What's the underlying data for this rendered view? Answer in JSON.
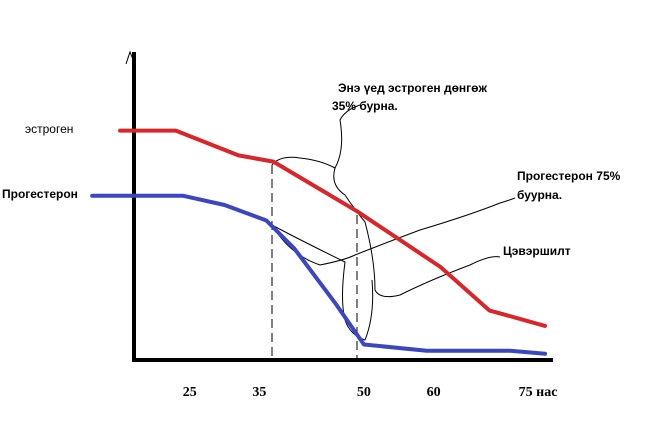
{
  "chart_data": {
    "type": "line",
    "series": [
      {
        "name": "эстроген",
        "color": "#d9262a",
        "x": [
          15,
          23,
          32,
          37,
          43,
          49,
          55,
          61,
          68,
          76
        ],
        "values": [
          74,
          74,
          66,
          64,
          56,
          48,
          39,
          30,
          16,
          11
        ]
      },
      {
        "name": "Прогестерон",
        "color": "#3c46c0",
        "x": [
          11,
          24,
          30,
          36,
          40,
          46,
          50,
          59,
          71,
          76
        ],
        "values": [
          53,
          53,
          50,
          45,
          36,
          18,
          5,
          3,
          3,
          2
        ]
      }
    ],
    "xlim": [
      17,
      77
    ],
    "xticks": [
      25,
      35,
      50,
      60,
      {
        "value": 75,
        "label": "75 нас"
      }
    ],
    "ylim": [
      0,
      100
    ],
    "annotations": [
      "Энэ үед эстроген дөнгөж",
      "35% бурна.",
      "Прогестерон 75%",
      "буурна.",
      "Цэвэршилт"
    ]
  }
}
